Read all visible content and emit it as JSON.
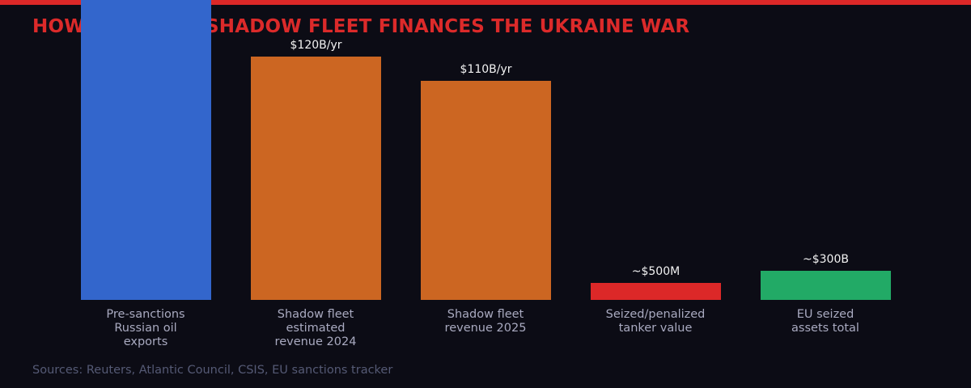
{
  "chart_data": {
    "type": "bar",
    "title_visible_parts": [
      "HOW",
      "SHADOW FLEET FINANCES THE UKRAINE WAR"
    ],
    "unit": "USD billions",
    "categories": [
      "Pre-sanctions\nRussian oil\nexports",
      "Shadow fleet\nestimated\nrevenue 2024",
      "Shadow fleet\nrevenue 2025",
      "Seized/penalized\ntanker value",
      "EU seized\nassets total"
    ],
    "values": [
      null,
      120,
      110,
      0.5,
      300
    ],
    "value_labels": [
      "",
      "$120B/yr",
      "$110B/yr",
      "~$500M",
      "~$300B"
    ],
    "colors": [
      "#3366cc",
      "#cc6622",
      "#cc6622",
      "#dc2828",
      "#22aa66"
    ],
    "grid": false,
    "legend": "none"
  },
  "source": "Sources: Reuters, Atlantic Council, CSIS, EU sanctions tracker"
}
